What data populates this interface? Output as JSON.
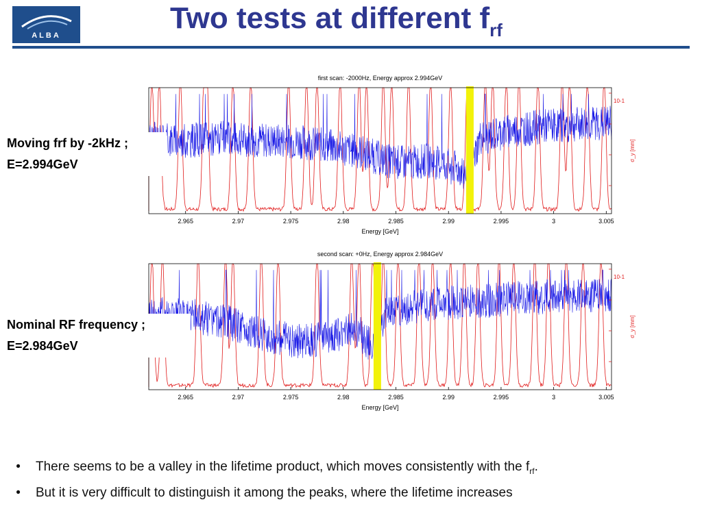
{
  "header": {
    "logo_text": "ALBA",
    "title_main": "Two tests at different f",
    "title_sub": "rf"
  },
  "labels": {
    "top": [
      "Moving frf by -2kHz ;",
      "E=2.994GeV"
    ],
    "bottom": [
      "Nominal RF frequency ;",
      "E=2.984GeV"
    ]
  },
  "bullets": [
    {
      "text": "There seems to be a valley in the lifetime product, which moves consistently with the f",
      "sub": "rf",
      "after": "."
    },
    {
      "text": "But it is very difficult to distinguish it among the peaks, where the lifetime increases",
      "sub": "",
      "after": ""
    }
  ],
  "colors": {
    "title": "#2e3790",
    "rule": "#1f4e8c",
    "series_blue": "#1a1ae6",
    "series_red": "#e01818",
    "marker": "#f2f20a"
  },
  "chart_data": [
    {
      "type": "line",
      "title": "first scan: -2000Hz, Energy approx 2.994GeV",
      "xlabel": "Energy [GeV]",
      "ylabel": "σ_y [mm]",
      "y_exponent": "10^-1",
      "xlim": [
        2.9615,
        3.0055
      ],
      "xticks": [
        2.965,
        2.97,
        2.975,
        2.98,
        2.985,
        2.99,
        2.995,
        3,
        3.005
      ],
      "xtick_labels": [
        "2.965",
        "2.97",
        "2.975",
        "2.98",
        "2.985",
        "2.99",
        "2.995",
        "3",
        "3.005"
      ],
      "marker_x": 2.992,
      "series": [
        {
          "color": "blue",
          "x": [
            2.9615,
            2.965,
            2.968,
            2.972,
            2.976,
            2.979,
            2.982,
            2.984,
            2.986,
            2.988,
            2.99,
            2.992,
            2.993,
            2.996,
            3.0,
            3.0055
          ],
          "y": [
            0.6,
            0.58,
            0.6,
            0.58,
            0.57,
            0.53,
            0.48,
            0.42,
            0.4,
            0.42,
            0.38,
            0.32,
            0.6,
            0.66,
            0.7,
            0.72
          ]
        },
        {
          "color": "red",
          "type": "peaks",
          "peaks": [
            2.9618,
            2.9625,
            2.9645,
            2.9668,
            2.967,
            2.9695,
            2.9712,
            2.9748,
            2.9765,
            2.9775,
            2.9797,
            2.9815,
            2.9822,
            2.9838,
            2.9846,
            2.9862,
            2.9883,
            2.9902,
            2.9918,
            2.9935,
            2.9942,
            2.9955,
            2.9967,
            2.9985,
            3.0008,
            3.0015,
            3.0032,
            3.0048
          ]
        }
      ]
    },
    {
      "type": "line",
      "title": "second scan: +0Hz, Energy approx 2.984GeV",
      "xlabel": "Energy [GeV]",
      "ylabel": "σ_y [mm]",
      "y_exponent": "10^-1",
      "xlim": [
        2.9615,
        3.0055
      ],
      "xticks": [
        2.965,
        2.97,
        2.975,
        2.98,
        2.985,
        2.99,
        2.995,
        3,
        3.005
      ],
      "xtick_labels": [
        "2.965",
        "2.97",
        "2.975",
        "2.98",
        "2.985",
        "2.99",
        "2.995",
        "3",
        "3.005"
      ],
      "marker_x": 2.9832,
      "series": [
        {
          "color": "blue",
          "x": [
            2.9615,
            2.966,
            2.969,
            2.972,
            2.976,
            2.979,
            2.981,
            2.9832,
            2.984,
            2.988,
            2.992,
            2.996,
            3.0,
            3.0055
          ],
          "y": [
            0.62,
            0.58,
            0.54,
            0.44,
            0.38,
            0.42,
            0.5,
            0.3,
            0.62,
            0.68,
            0.7,
            0.72,
            0.74,
            0.76
          ]
        },
        {
          "color": "red",
          "type": "peaks",
          "peaks": [
            2.9618,
            2.9628,
            2.9662,
            2.9688,
            2.9695,
            2.9722,
            2.9738,
            2.9775,
            2.9808,
            2.9815,
            2.9828,
            2.9838,
            2.9852,
            2.9872,
            2.9885,
            2.9902,
            2.9915,
            2.9928,
            2.9948,
            2.9962,
            2.9982,
            2.9995,
            3.0012,
            3.0028,
            3.0045
          ]
        }
      ]
    }
  ]
}
